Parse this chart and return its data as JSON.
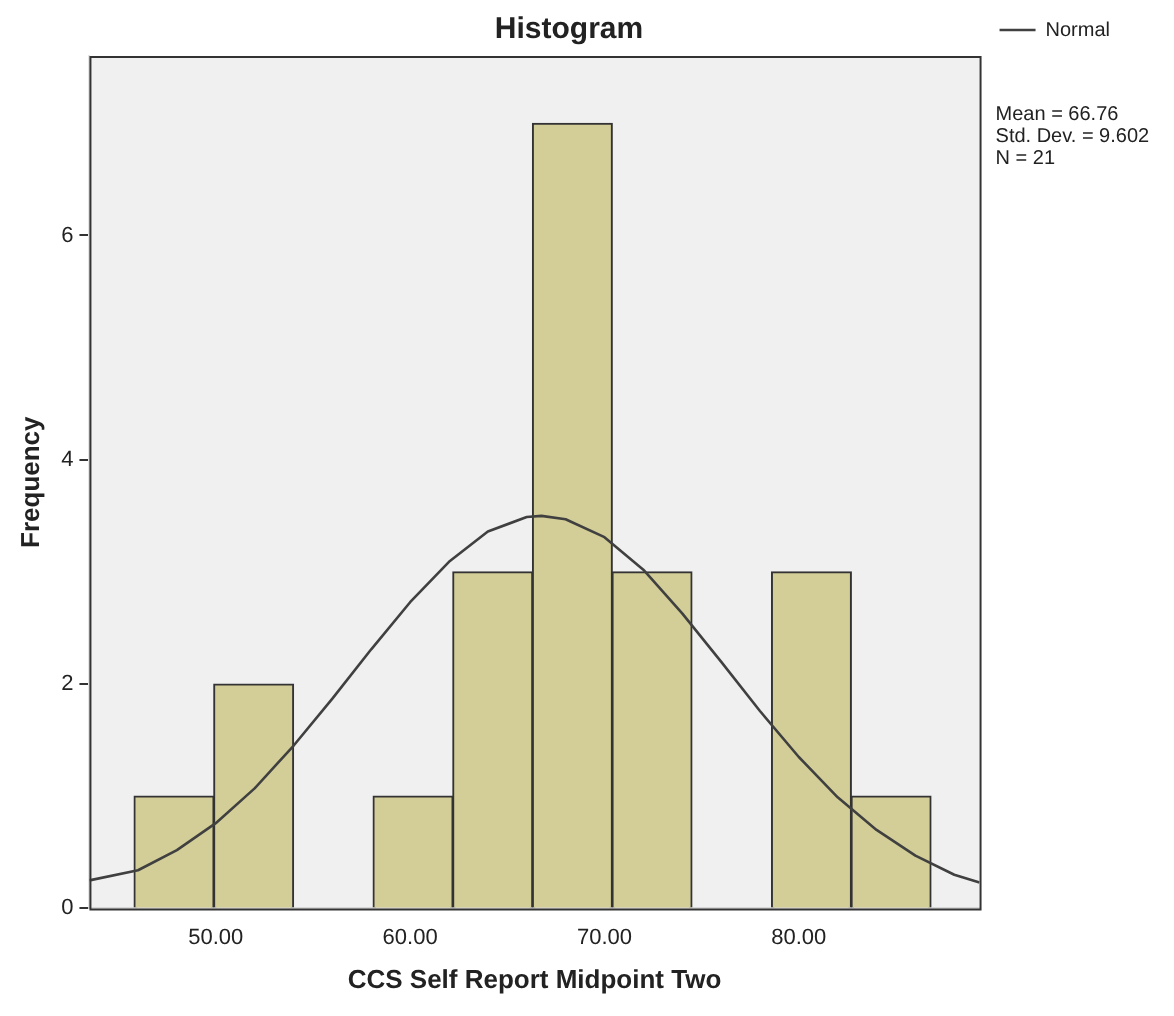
{
  "chart_data": {
    "type": "histogram",
    "title": "Histogram",
    "xlabel": "CCS Self Report Midpoint Two",
    "ylabel": "Frequency",
    "bins": [
      45.8,
      49.9,
      54.0,
      58.1,
      62.2,
      66.3,
      70.4,
      74.5,
      78.6,
      82.7,
      86.8
    ],
    "values": [
      1,
      2,
      0,
      1,
      3,
      7,
      3,
      0,
      3,
      1
    ],
    "color": "#d3ce97",
    "series": [
      {
        "name": "Normal",
        "type": "line",
        "color": "#404040",
        "x": [
          43.5,
          46,
          48,
          50,
          52,
          54,
          56,
          58,
          60,
          62,
          64,
          66,
          66.76,
          68,
          70,
          72,
          74,
          76,
          78,
          80,
          82,
          84,
          86,
          88,
          89.3
        ],
        "values": [
          0.25,
          0.34,
          0.52,
          0.76,
          1.07,
          1.45,
          1.87,
          2.31,
          2.73,
          3.09,
          3.36,
          3.49,
          3.5,
          3.47,
          3.31,
          3.02,
          2.63,
          2.2,
          1.76,
          1.35,
          0.99,
          0.7,
          0.47,
          0.3,
          0.23
        ]
      }
    ],
    "xlim": [
      43.5,
      89.3
    ],
    "xticks": [
      {
        "value": 50,
        "label": "50.00"
      },
      {
        "value": 60,
        "label": "60.00"
      },
      {
        "value": 70,
        "label": "70.00"
      },
      {
        "value": 80,
        "label": "80.00"
      }
    ],
    "ylim": [
      0,
      7.6
    ],
    "yticks": [
      0,
      2,
      4,
      6
    ],
    "grid": false,
    "legend": "top right",
    "marker": "none",
    "line_style": "solid",
    "annotations": [
      "Mean = 66.76",
      "Std. Dev. = 9.602",
      "N = 21"
    ]
  }
}
